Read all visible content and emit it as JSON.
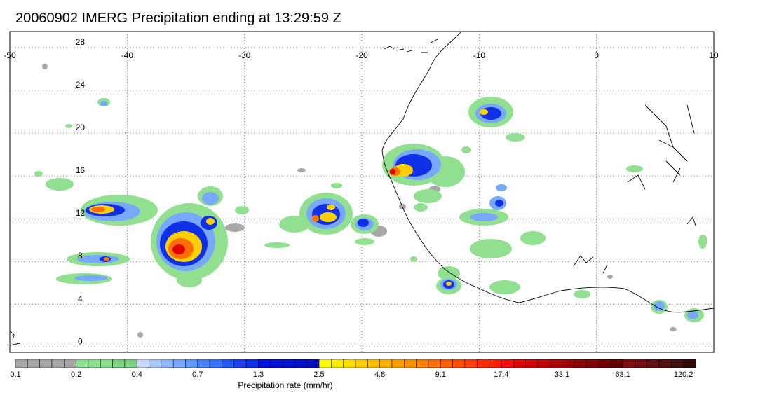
{
  "title": "20060902 IMERG Precipitation ending at 13:29:59 Z",
  "map": {
    "lon_range": [
      -50,
      10
    ],
    "lat_range": [
      -0.5,
      29.5
    ],
    "lon_ticks": [
      -50,
      -40,
      -30,
      -20,
      -10,
      0,
      10
    ],
    "lon_tick_labels": [
      "-50",
      "-40",
      "-30",
      "-20",
      "-10",
      "0",
      "10"
    ],
    "lat_ticks": [
      0,
      4,
      8,
      12,
      16,
      20,
      24,
      28
    ],
    "lat_tick_labels": [
      "0",
      "4",
      "8",
      "12",
      "16",
      "20",
      "24",
      "28"
    ],
    "grid": "dotted",
    "features": [
      "West African coastline",
      "precipitation cells"
    ]
  },
  "colorbar": {
    "title": "Precipitation rate (mm/hr)",
    "labels": [
      "0.1",
      "0.2",
      "0.4",
      "0.7",
      "1.3",
      "2.5",
      "4.8",
      "9.1",
      "17.4",
      "33.1",
      "63.1",
      "120.2"
    ],
    "label_positions_bin": [
      0,
      5,
      10,
      15,
      20,
      25,
      30,
      35,
      40,
      45,
      50,
      55
    ],
    "colors": [
      "#a8a8a8",
      "#a8a8a8",
      "#a8a8a8",
      "#a8a8a8",
      "#a8a8a8",
      "#90e090",
      "#90e090",
      "#90e090",
      "#80d080",
      "#80d080",
      "#c8d8ff",
      "#a8c8ff",
      "#90b8ff",
      "#78a8ff",
      "#6098ff",
      "#4880ff",
      "#3870ff",
      "#2858f8",
      "#2040f0",
      "#1030e8",
      "#0010e0",
      "#0010d8",
      "#0010d0",
      "#0010c8",
      "#0010c0",
      "#ffff00",
      "#ffee00",
      "#ffe000",
      "#ffd000",
      "#ffc000",
      "#ffb000",
      "#ffa000",
      "#ff9000",
      "#ff8000",
      "#ff7000",
      "#ff6000",
      "#ff5000",
      "#ff4000",
      "#ff3000",
      "#ff2000",
      "#f01010",
      "#e00000",
      "#d00000",
      "#c00000",
      "#b00000",
      "#a00000",
      "#900000",
      "#800000",
      "#700000",
      "#600000",
      "#801010",
      "#701010",
      "#601010",
      "#501010",
      "#401010",
      "#300808"
    ]
  }
}
